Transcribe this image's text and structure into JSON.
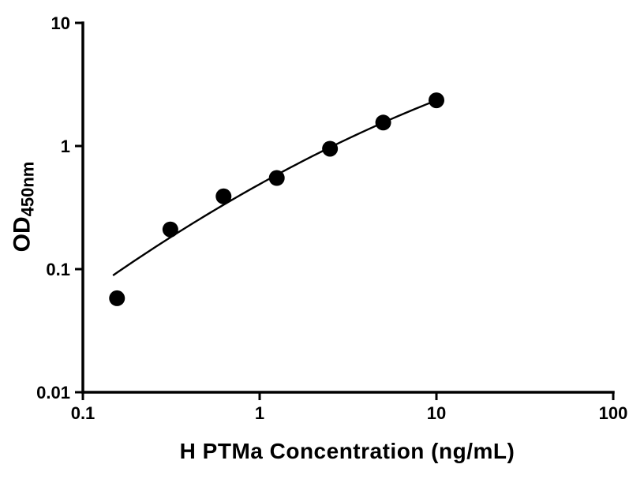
{
  "chart_data": {
    "type": "scatter",
    "title": "",
    "xlabel": "H PTMa Concentration (ng/mL)",
    "ylabel_main": "OD",
    "ylabel_sub": "450nm",
    "x_scale": "log10",
    "y_scale": "log10",
    "xlim": [
      0.1,
      100
    ],
    "ylim": [
      0.01,
      10
    ],
    "grid": false,
    "legend": "none",
    "x_ticks": [
      {
        "v": 0.1,
        "label": "0.1"
      },
      {
        "v": 1,
        "label": "1"
      },
      {
        "v": 10,
        "label": "10"
      },
      {
        "v": 100,
        "label": "100"
      }
    ],
    "y_ticks": [
      {
        "v": 0.01,
        "label": "0.01"
      },
      {
        "v": 0.1,
        "label": "0.1"
      },
      {
        "v": 1,
        "label": "1"
      },
      {
        "v": 10,
        "label": "10"
      }
    ],
    "points": {
      "x": [
        0.156,
        0.3125,
        0.625,
        1.25,
        2.5,
        5,
        10
      ],
      "y": [
        0.058,
        0.21,
        0.39,
        0.55,
        0.95,
        1.55,
        2.35
      ]
    },
    "fit_curve": {
      "model": "quadratic_loglog",
      "coeffs": {
        "a": -0.31,
        "b": 0.797,
        "c": -0.116
      },
      "x_range": [
        0.148,
        10
      ]
    },
    "style": {
      "point_color": "#000000",
      "point_radius": 10,
      "curve_color": "#000000",
      "curve_width": 2.4,
      "axis_color": "#000000",
      "axis_width": 3.5,
      "tick_width": 3,
      "tick_length": 10
    }
  }
}
